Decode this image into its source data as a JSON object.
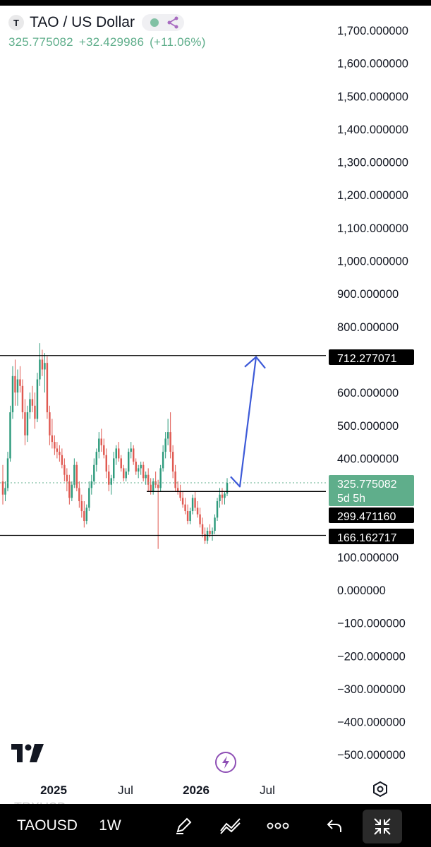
{
  "legend": {
    "symbol_logo": "T",
    "title": "TAO / US Dollar",
    "last": "325.775082",
    "change": "+32.429986",
    "change_pct": "(+11.06%)"
  },
  "colors": {
    "up": "#2f9b7d",
    "down": "#e05a52",
    "accent": "#3d5ad8",
    "price_tag": "#5fae8b"
  },
  "chart_data": {
    "type": "candlestick",
    "symbol": "TAOUSD",
    "interval": "1W",
    "price_axis": {
      "ticks": [
        1700,
        1600,
        1500,
        1400,
        1300,
        1200,
        1100,
        1000,
        900,
        800,
        600,
        500,
        400,
        100,
        0,
        -100,
        -200,
        -300,
        -400,
        -500
      ],
      "tick_labels": [
        "1,700.000000",
        "1,600.000000",
        "1,500.000000",
        "1,400.000000",
        "1,300.000000",
        "1,200.000000",
        "1,100.000000",
        "1,000.000000",
        "900.000000",
        "800.000000",
        "600.000000",
        "500.000000",
        "400.000000",
        "100.000000",
        "0.000000",
        "−100.000000",
        "−200.000000",
        "−300.000000",
        "−400.000000",
        "−500.000000"
      ]
    },
    "time_axis": {
      "labels": [
        "2025",
        "Jul",
        "2026",
        "Jul"
      ]
    },
    "horizontal_lines": [
      {
        "price": 712.277071,
        "label": "712.277071"
      },
      {
        "price": 299.47116,
        "label": "299.471160"
      },
      {
        "price": 166.162717,
        "label": "166.162717"
      }
    ],
    "last_price": {
      "price": 325.775082,
      "label": "325.775082",
      "countdown": "5d 5h"
    },
    "arrow": {
      "from_price": 310,
      "to_price": 712.277071
    },
    "candles": [
      {
        "o": 330,
        "h": 380,
        "l": 260,
        "c": 290
      },
      {
        "o": 290,
        "h": 330,
        "l": 270,
        "c": 310
      },
      {
        "o": 310,
        "h": 420,
        "l": 300,
        "c": 400
      },
      {
        "o": 400,
        "h": 560,
        "l": 390,
        "c": 540
      },
      {
        "o": 540,
        "h": 680,
        "l": 520,
        "c": 650
      },
      {
        "o": 650,
        "h": 700,
        "l": 560,
        "c": 600
      },
      {
        "o": 600,
        "h": 670,
        "l": 560,
        "c": 640
      },
      {
        "o": 640,
        "h": 680,
        "l": 600,
        "c": 620
      },
      {
        "o": 620,
        "h": 640,
        "l": 520,
        "c": 540
      },
      {
        "o": 540,
        "h": 580,
        "l": 440,
        "c": 470
      },
      {
        "o": 470,
        "h": 560,
        "l": 450,
        "c": 540
      },
      {
        "o": 540,
        "h": 600,
        "l": 520,
        "c": 580
      },
      {
        "o": 580,
        "h": 620,
        "l": 540,
        "c": 560
      },
      {
        "o": 560,
        "h": 600,
        "l": 490,
        "c": 520
      },
      {
        "o": 520,
        "h": 660,
        "l": 510,
        "c": 640
      },
      {
        "o": 640,
        "h": 750,
        "l": 620,
        "c": 700
      },
      {
        "o": 700,
        "h": 730,
        "l": 650,
        "c": 670
      },
      {
        "o": 670,
        "h": 720,
        "l": 600,
        "c": 690
      },
      {
        "o": 690,
        "h": 710,
        "l": 520,
        "c": 540
      },
      {
        "o": 540,
        "h": 560,
        "l": 440,
        "c": 470
      },
      {
        "o": 470,
        "h": 520,
        "l": 430,
        "c": 450
      },
      {
        "o": 450,
        "h": 470,
        "l": 410,
        "c": 430
      },
      {
        "o": 430,
        "h": 450,
        "l": 400,
        "c": 420
      },
      {
        "o": 420,
        "h": 440,
        "l": 390,
        "c": 410
      },
      {
        "o": 410,
        "h": 430,
        "l": 370,
        "c": 380
      },
      {
        "o": 380,
        "h": 400,
        "l": 330,
        "c": 350
      },
      {
        "o": 350,
        "h": 370,
        "l": 300,
        "c": 330
      },
      {
        "o": 330,
        "h": 350,
        "l": 260,
        "c": 280
      },
      {
        "o": 280,
        "h": 330,
        "l": 270,
        "c": 320
      },
      {
        "o": 320,
        "h": 400,
        "l": 310,
        "c": 380
      },
      {
        "o": 380,
        "h": 390,
        "l": 300,
        "c": 310
      },
      {
        "o": 310,
        "h": 330,
        "l": 250,
        "c": 270
      },
      {
        "o": 270,
        "h": 290,
        "l": 220,
        "c": 240
      },
      {
        "o": 240,
        "h": 270,
        "l": 190,
        "c": 210
      },
      {
        "o": 210,
        "h": 260,
        "l": 200,
        "c": 250
      },
      {
        "o": 250,
        "h": 330,
        "l": 240,
        "c": 310
      },
      {
        "o": 310,
        "h": 350,
        "l": 290,
        "c": 330
      },
      {
        "o": 330,
        "h": 400,
        "l": 320,
        "c": 380
      },
      {
        "o": 380,
        "h": 430,
        "l": 360,
        "c": 420
      },
      {
        "o": 420,
        "h": 480,
        "l": 400,
        "c": 460
      },
      {
        "o": 460,
        "h": 490,
        "l": 420,
        "c": 440
      },
      {
        "o": 440,
        "h": 460,
        "l": 400,
        "c": 410
      },
      {
        "o": 410,
        "h": 430,
        "l": 340,
        "c": 360
      },
      {
        "o": 360,
        "h": 380,
        "l": 300,
        "c": 320
      },
      {
        "o": 320,
        "h": 350,
        "l": 290,
        "c": 340
      },
      {
        "o": 340,
        "h": 420,
        "l": 330,
        "c": 400
      },
      {
        "o": 400,
        "h": 440,
        "l": 380,
        "c": 430
      },
      {
        "o": 430,
        "h": 450,
        "l": 390,
        "c": 400
      },
      {
        "o": 400,
        "h": 410,
        "l": 360,
        "c": 370
      },
      {
        "o": 370,
        "h": 380,
        "l": 330,
        "c": 340
      },
      {
        "o": 340,
        "h": 370,
        "l": 330,
        "c": 360
      },
      {
        "o": 360,
        "h": 430,
        "l": 350,
        "c": 420
      },
      {
        "o": 420,
        "h": 450,
        "l": 400,
        "c": 430
      },
      {
        "o": 430,
        "h": 440,
        "l": 380,
        "c": 390
      },
      {
        "o": 390,
        "h": 400,
        "l": 350,
        "c": 360
      },
      {
        "o": 360,
        "h": 380,
        "l": 340,
        "c": 370
      },
      {
        "o": 370,
        "h": 390,
        "l": 350,
        "c": 380
      },
      {
        "o": 380,
        "h": 390,
        "l": 330,
        "c": 340
      },
      {
        "o": 340,
        "h": 360,
        "l": 320,
        "c": 350
      },
      {
        "o": 350,
        "h": 370,
        "l": 300,
        "c": 320
      },
      {
        "o": 320,
        "h": 340,
        "l": 290,
        "c": 300
      },
      {
        "o": 300,
        "h": 340,
        "l": 290,
        "c": 330
      },
      {
        "o": 330,
        "h": 360,
        "l": 310,
        "c": 320
      },
      {
        "o": 320,
        "h": 335,
        "l": 125,
        "c": 310
      },
      {
        "o": 310,
        "h": 380,
        "l": 300,
        "c": 370
      },
      {
        "o": 370,
        "h": 440,
        "l": 360,
        "c": 420
      },
      {
        "o": 420,
        "h": 480,
        "l": 400,
        "c": 460
      },
      {
        "o": 460,
        "h": 520,
        "l": 440,
        "c": 480
      },
      {
        "o": 480,
        "h": 540,
        "l": 400,
        "c": 420
      },
      {
        "o": 420,
        "h": 440,
        "l": 340,
        "c": 360
      },
      {
        "o": 360,
        "h": 380,
        "l": 300,
        "c": 310
      },
      {
        "o": 310,
        "h": 330,
        "l": 290,
        "c": 300
      },
      {
        "o": 300,
        "h": 320,
        "l": 270,
        "c": 280
      },
      {
        "o": 280,
        "h": 300,
        "l": 250,
        "c": 260
      },
      {
        "o": 260,
        "h": 280,
        "l": 230,
        "c": 240
      },
      {
        "o": 240,
        "h": 260,
        "l": 200,
        "c": 210
      },
      {
        "o": 210,
        "h": 250,
        "l": 200,
        "c": 240
      },
      {
        "o": 240,
        "h": 290,
        "l": 230,
        "c": 280
      },
      {
        "o": 280,
        "h": 300,
        "l": 240,
        "c": 250
      },
      {
        "o": 250,
        "h": 270,
        "l": 220,
        "c": 230
      },
      {
        "o": 230,
        "h": 250,
        "l": 190,
        "c": 200
      },
      {
        "o": 200,
        "h": 220,
        "l": 160,
        "c": 170
      },
      {
        "o": 170,
        "h": 190,
        "l": 140,
        "c": 150
      },
      {
        "o": 150,
        "h": 190,
        "l": 140,
        "c": 180
      },
      {
        "o": 180,
        "h": 200,
        "l": 160,
        "c": 170
      },
      {
        "o": 170,
        "h": 190,
        "l": 150,
        "c": 180
      },
      {
        "o": 180,
        "h": 230,
        "l": 170,
        "c": 220
      },
      {
        "o": 220,
        "h": 280,
        "l": 210,
        "c": 270
      },
      {
        "o": 270,
        "h": 310,
        "l": 250,
        "c": 290
      },
      {
        "o": 290,
        "h": 310,
        "l": 260,
        "c": 280
      },
      {
        "o": 280,
        "h": 300,
        "l": 260,
        "c": 293
      },
      {
        "o": 293,
        "h": 340,
        "l": 285,
        "c": 325.775082
      }
    ]
  },
  "toolbar": {
    "symbol": "TAOUSD",
    "interval": "1W",
    "ghost_label": "TRXUSD"
  }
}
